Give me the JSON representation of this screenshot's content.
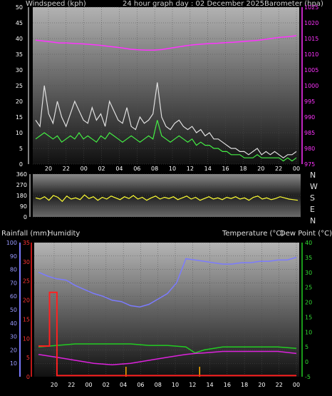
{
  "header": {
    "windspeed_label": "Windspeed (kph)",
    "title": "24 hour graph day : 02 December 2025",
    "barometer_label": "Barometer (hpa)"
  },
  "bottom_header": {
    "rainfall_label": "Rainfall (mm)",
    "humidity_label": "Humidity",
    "temperature_label": "Temperature (°C)",
    "dewpoint_label": "Dew Point (°C)"
  },
  "compass": [
    "N",
    "W",
    "S",
    "E",
    "N"
  ],
  "colors": {
    "gust": "#e0e0e0",
    "wind": "#44ee44",
    "barometer": "#ff33ff",
    "direction": "#ffff33",
    "humidity": "#7b7bff",
    "temperature": "#22cc22",
    "dewpoint": "#dd22dd",
    "rainfall": "#ff2020",
    "solar_tick": "#ffaa00"
  },
  "chart_data": [
    {
      "type": "line",
      "id": "wind",
      "x_tick_labels": [
        "20",
        "22",
        "00",
        "02",
        "04",
        "06",
        "08",
        "10",
        "12",
        "14",
        "16",
        "18",
        "20",
        "22",
        "00"
      ],
      "left_axis": {
        "ticks": [
          0,
          5,
          10,
          15,
          20,
          25,
          30,
          35,
          40,
          45,
          50
        ],
        "ylim": [
          0,
          50
        ]
      },
      "right_axis": {
        "ticks": [
          975,
          980,
          985,
          990,
          995,
          1000,
          1005,
          1010,
          1015,
          1020,
          1025
        ],
        "ylim": [
          975,
          1025
        ]
      },
      "series": [
        {
          "key": "gust",
          "axis": "left",
          "values": [
            14,
            12,
            25,
            16,
            13,
            20,
            15,
            12,
            16,
            20,
            17,
            14,
            13,
            18,
            14,
            16,
            12,
            20,
            17,
            14,
            13,
            18,
            12,
            11,
            15,
            13,
            14,
            16,
            26,
            15,
            12,
            11,
            13,
            14,
            12,
            11,
            12,
            10,
            11,
            9,
            10,
            8,
            8,
            7,
            6,
            5,
            5,
            4,
            4,
            3,
            4,
            5,
            3,
            4,
            3,
            4,
            3,
            2,
            3,
            3,
            4
          ]
        },
        {
          "key": "wind",
          "axis": "left",
          "values": [
            8,
            9,
            10,
            9,
            8,
            9,
            7,
            8,
            9,
            8,
            10,
            8,
            9,
            8,
            7,
            9,
            8,
            10,
            9,
            8,
            7,
            8,
            9,
            8,
            7,
            8,
            9,
            8,
            14,
            9,
            8,
            7,
            8,
            9,
            8,
            7,
            8,
            6,
            7,
            6,
            6,
            5,
            5,
            4,
            4,
            3,
            3,
            3,
            2,
            2,
            2,
            3,
            2,
            2,
            2,
            2,
            2,
            1,
            2,
            1,
            2
          ]
        },
        {
          "key": "barometer",
          "axis": "right",
          "values": [
            1014.5,
            1014.2,
            1013.9,
            1013.6,
            1013.6,
            1013.4,
            1013.3,
            1013.1,
            1012.9,
            1012.6,
            1012.3,
            1012.0,
            1011.6,
            1011.4,
            1011.3,
            1011.3,
            1011.5,
            1011.9,
            1012.3,
            1012.7,
            1013.0,
            1013.2,
            1013.4,
            1013.5,
            1013.7,
            1013.8,
            1014.0,
            1014.2,
            1014.4,
            1014.7,
            1015.1,
            1015.4,
            1015.6,
            1015.9
          ]
        }
      ]
    },
    {
      "type": "line",
      "id": "direction",
      "left_axis": {
        "ticks": [
          0,
          90,
          180,
          270,
          360
        ],
        "ylim": [
          0,
          360
        ]
      },
      "right_axis_labels": [
        "N",
        "W",
        "S",
        "E",
        "N"
      ],
      "series": [
        {
          "key": "direction",
          "values": [
            160,
            150,
            170,
            140,
            180,
            165,
            130,
            175,
            150,
            160,
            145,
            185,
            155,
            170,
            140,
            165,
            150,
            175,
            160,
            145,
            170,
            155,
            180,
            150,
            165,
            140,
            160,
            175,
            150,
            165,
            155,
            170,
            145,
            160,
            175,
            150,
            165,
            140,
            155,
            170,
            150,
            160,
            145,
            165,
            155,
            170,
            150,
            160,
            140,
            165,
            175,
            150,
            160,
            145,
            155,
            170,
            160,
            150,
            145,
            140
          ]
        }
      ]
    },
    {
      "type": "line",
      "id": "climate",
      "x_tick_labels": [
        "20",
        "22",
        "00",
        "02",
        "04",
        "06",
        "08",
        "10",
        "12",
        "14",
        "16",
        "18",
        "20",
        "22",
        "00"
      ],
      "left_axis_humidity": {
        "ticks": [
          10,
          20,
          30,
          40,
          50,
          60,
          70,
          80,
          90,
          100
        ],
        "ylim": [
          0,
          100
        ]
      },
      "left_axis_rain": {
        "ticks": [
          0,
          5,
          10,
          15,
          20,
          25,
          30,
          35
        ],
        "ylim": [
          0,
          35
        ]
      },
      "right_axis_temp": {
        "ticks": [
          -5,
          0,
          5,
          10,
          15,
          20,
          25,
          30,
          35,
          40
        ],
        "ylim": [
          -5,
          40
        ]
      },
      "series": [
        {
          "key": "humidity",
          "axis": "humidity",
          "x": [
            0,
            1,
            2,
            3,
            4,
            5,
            6,
            7,
            8,
            9,
            10,
            11,
            12,
            13,
            14,
            15,
            16,
            17,
            18,
            19,
            20,
            21,
            22,
            23,
            24,
            25,
            26,
            27,
            28
          ],
          "values": [
            78,
            75,
            73,
            72,
            68,
            65,
            62,
            60,
            57,
            56,
            53,
            52,
            54,
            58,
            62,
            70,
            88,
            87,
            86,
            85,
            84,
            84,
            85,
            85,
            86,
            86,
            87,
            87,
            89
          ]
        },
        {
          "key": "temperature",
          "axis": "temp",
          "x": [
            0,
            2,
            4,
            6,
            8,
            10,
            12,
            14,
            16,
            17,
            18,
            20,
            22,
            24,
            26,
            28
          ],
          "values": [
            5,
            5.5,
            6,
            6,
            6,
            6,
            5.5,
            5.5,
            5,
            3,
            4,
            5,
            5,
            5,
            5,
            4.5
          ]
        },
        {
          "key": "dewpoint",
          "axis": "temp",
          "x": [
            0,
            2,
            4,
            6,
            8,
            10,
            12,
            14,
            16,
            17,
            18,
            20,
            22,
            24,
            26,
            28
          ],
          "values": [
            2.5,
            1.5,
            0.5,
            -0.5,
            -1,
            -0.5,
            0.5,
            1.5,
            2.5,
            2.8,
            3,
            3.5,
            3.5,
            3.5,
            3.5,
            2.8
          ]
        },
        {
          "key": "rainfall",
          "axis": "rain",
          "step": true,
          "x": [
            0,
            1.2,
            1.2,
            2,
            2,
            4,
            4,
            28
          ],
          "values": [
            8,
            8,
            22,
            22,
            0.3,
            0.3,
            0.3,
            0.3
          ]
        }
      ],
      "solar_ticks": [
        9.5,
        17.5
      ]
    }
  ]
}
